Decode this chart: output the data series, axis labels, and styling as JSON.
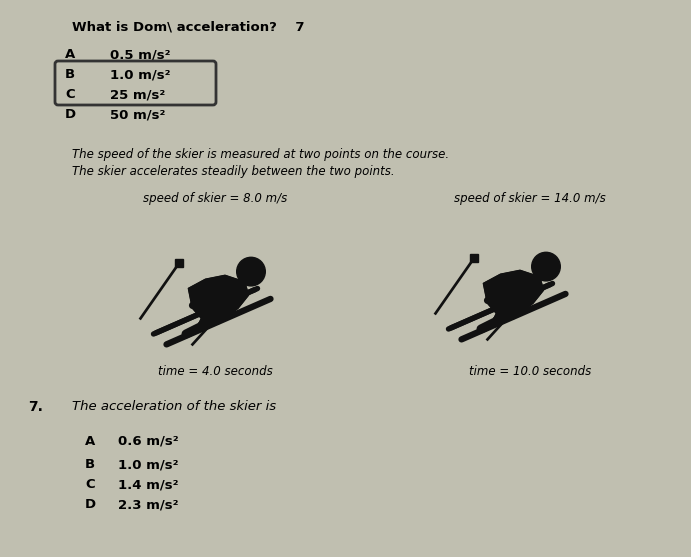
{
  "bg_color": "#c0bfb0",
  "title_q": "What is Dom\\ acceleration?    7",
  "q1_options": [
    [
      "A",
      "0.5 m/s²"
    ],
    [
      "B",
      "1.0 m/s²"
    ],
    [
      "C",
      "25 m/s²"
    ],
    [
      "D",
      "50 m/s²"
    ]
  ],
  "highlighted_option": "C",
  "skier_text1": "The speed of the skier is measured at two points on the course.",
  "skier_text2": "The skier accelerates steadily between the two points.",
  "left_speed_label": "speed of skier = 8.0 m/s",
  "right_speed_label": "speed of skier = 14.0 m/s",
  "left_time_label": "time = 4.0 seconds",
  "right_time_label": "time = 10.0 seconds",
  "q2_number": "7.",
  "q2_text": "The acceleration of the skier is",
  "q2_options": [
    [
      "A",
      "0.6 m/s²"
    ],
    [
      "B",
      "1.0 m/s²"
    ],
    [
      "C",
      "1.4 m/s²"
    ],
    [
      "D",
      "2.3 m/s²"
    ]
  ]
}
